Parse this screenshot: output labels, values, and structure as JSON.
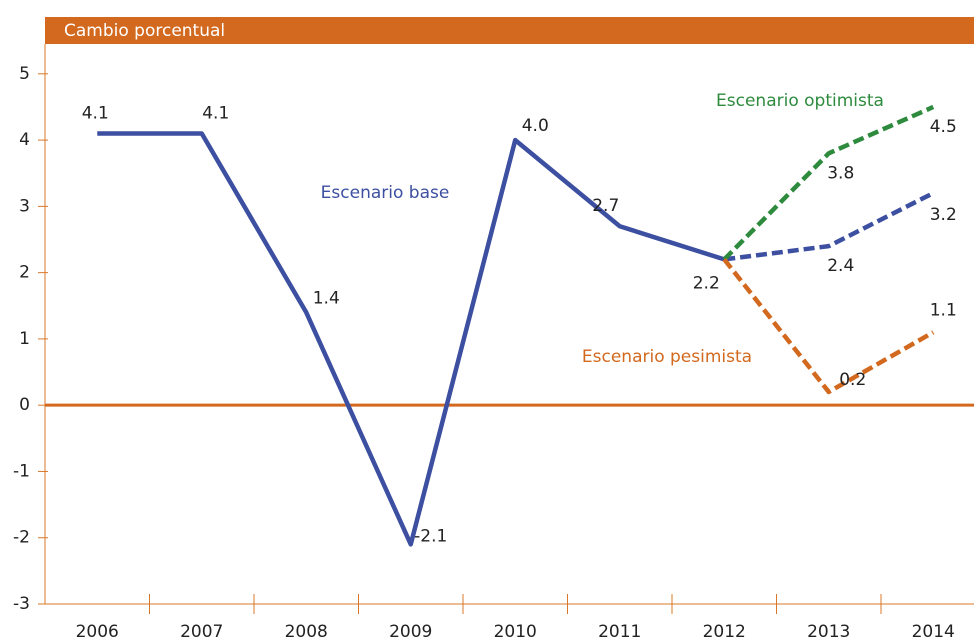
{
  "chart_data": {
    "type": "line",
    "title": "Cambio porcentual",
    "categories": [
      "2006",
      "2007",
      "2008",
      "2009",
      "2010",
      "2011",
      "2012",
      "2013",
      "2014"
    ],
    "projection_from": "2012",
    "series": [
      {
        "name": "Escenario base",
        "color": "#3c4fa0",
        "values": [
          4.1,
          4.1,
          1.4,
          -2.1,
          4.0,
          2.7,
          2.2,
          2.4,
          3.2
        ],
        "value_labels": [
          "4.1",
          "4.1",
          "1.4",
          "-2.1",
          "4.0",
          "2.7",
          "2.2",
          "2.4",
          "3.2"
        ]
      },
      {
        "name": "Escenario optimista",
        "color": "#2e8b3e",
        "values": [
          null,
          null,
          null,
          null,
          null,
          null,
          2.2,
          3.8,
          4.5
        ],
        "value_labels": [
          null,
          null,
          null,
          null,
          null,
          null,
          null,
          "3.8",
          "4.5"
        ]
      },
      {
        "name": "Escenario pesimista",
        "color": "#d2691e",
        "values": [
          null,
          null,
          null,
          null,
          null,
          null,
          2.2,
          0.2,
          1.1
        ],
        "value_labels": [
          null,
          null,
          null,
          null,
          null,
          null,
          null,
          "0.2",
          "1.1"
        ]
      }
    ],
    "ylim": [
      -3,
      5.45
    ],
    "yticks": [
      -3,
      -2,
      -1,
      0,
      1,
      2,
      3,
      4,
      5
    ],
    "header_color": "#d2691e",
    "axis_color": "#d9782a"
  }
}
